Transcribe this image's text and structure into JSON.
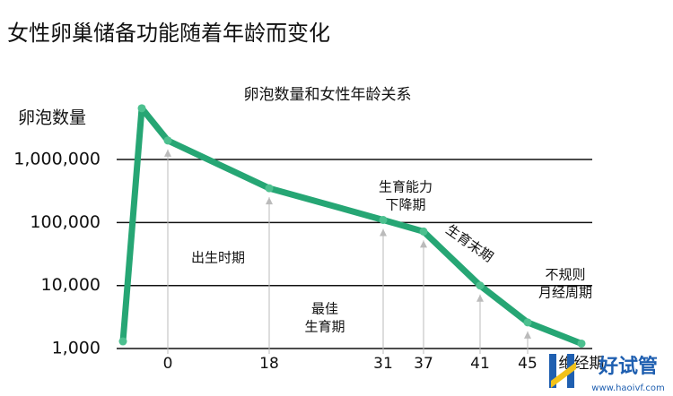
{
  "chart_data": {
    "type": "line",
    "log_scale": true,
    "grid": true,
    "title": "女性卵巢储备功能随着年龄而变化",
    "subtitle": "卵泡数量和女性年龄关系",
    "y_label": "卵泡数量",
    "categories": [
      null,
      null,
      "0",
      "18",
      "31",
      "37",
      "41",
      "45",
      "绝经期"
    ],
    "series": [
      {
        "name": "卵泡数量",
        "color": "#26a674",
        "values": [
          1300,
          6500000,
          2000000,
          350000,
          110000,
          72000,
          10000,
          2600,
          1200
        ]
      }
    ],
    "ylim": [
      500,
      10000000
    ],
    "yticks": [
      {
        "value": 1000,
        "label": "1,000"
      },
      {
        "value": 10000,
        "label": "10,000"
      },
      {
        "value": 100000,
        "label": "100,000"
      },
      {
        "value": 1000000,
        "label": "1,000,000"
      }
    ],
    "annotations": [
      [
        "出生时期"
      ],
      [
        "最佳",
        "生育期"
      ],
      [
        "生育能力",
        "下降期"
      ],
      [
        "生育末期"
      ],
      [
        "不规则",
        "月经周期"
      ]
    ]
  },
  "watermark": {
    "brand": "好试管",
    "url": "www.haoivf.com"
  }
}
